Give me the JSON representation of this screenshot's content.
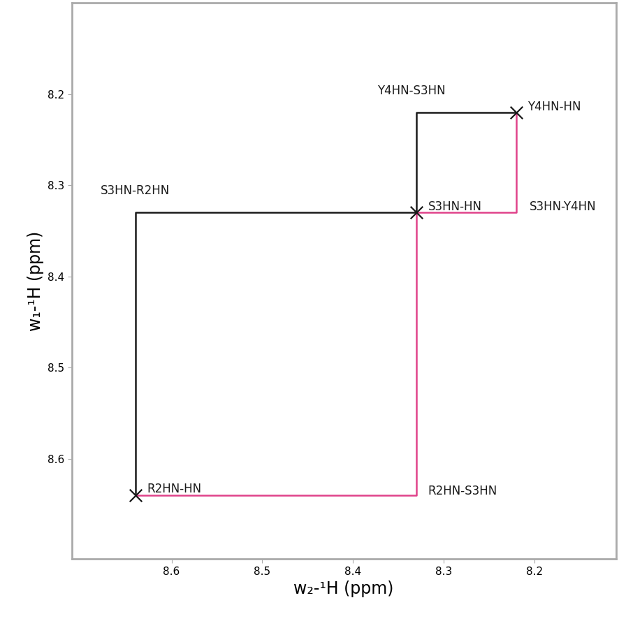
{
  "chart_data": {
    "type": "scatter",
    "xlabel": "w₂-¹H (ppm)",
    "ylabel": "w₁-¹H (ppm)",
    "xlim": [
      8.71,
      8.11
    ],
    "ylim": [
      8.71,
      8.1
    ],
    "xticks": [
      8.6,
      8.5,
      8.4,
      8.3,
      8.2
    ],
    "yticks": [
      8.2,
      8.3,
      8.4,
      8.5,
      8.6
    ],
    "grid": false,
    "points": {
      "x": [
        8.64,
        8.33,
        8.22
      ],
      "y": [
        8.64,
        8.33,
        8.22
      ],
      "labels": [
        "R2HN-HN",
        "S3HN-HN",
        "Y4HN-HN"
      ],
      "color": "#1a1a1a",
      "marker": "x"
    },
    "series": [
      {
        "color": "#1a1a1a",
        "line_style": "solid",
        "type": "line",
        "x": [
          8.22,
          8.33,
          8.33,
          8.64,
          8.64
        ],
        "y": [
          8.22,
          8.22,
          8.33,
          8.33,
          8.64
        ]
      },
      {
        "color": "#e0428a",
        "line_style": "solid",
        "type": "line",
        "x": [
          8.64,
          8.33,
          8.33,
          8.22,
          8.22
        ],
        "y": [
          8.64,
          8.64,
          8.33,
          8.33,
          8.22
        ]
      }
    ],
    "annotations": [
      {
        "text": "Y4HN-S3HN",
        "x": 8.33,
        "y": 8.22
      },
      {
        "text": "S3HN-R2HN",
        "x": 8.64,
        "y": 8.33
      },
      {
        "text": "S3HN-Y4HN",
        "x": 8.22,
        "y": 8.33
      },
      {
        "text": "R2HN-S3HN",
        "x": 8.33,
        "y": 8.64
      }
    ]
  }
}
